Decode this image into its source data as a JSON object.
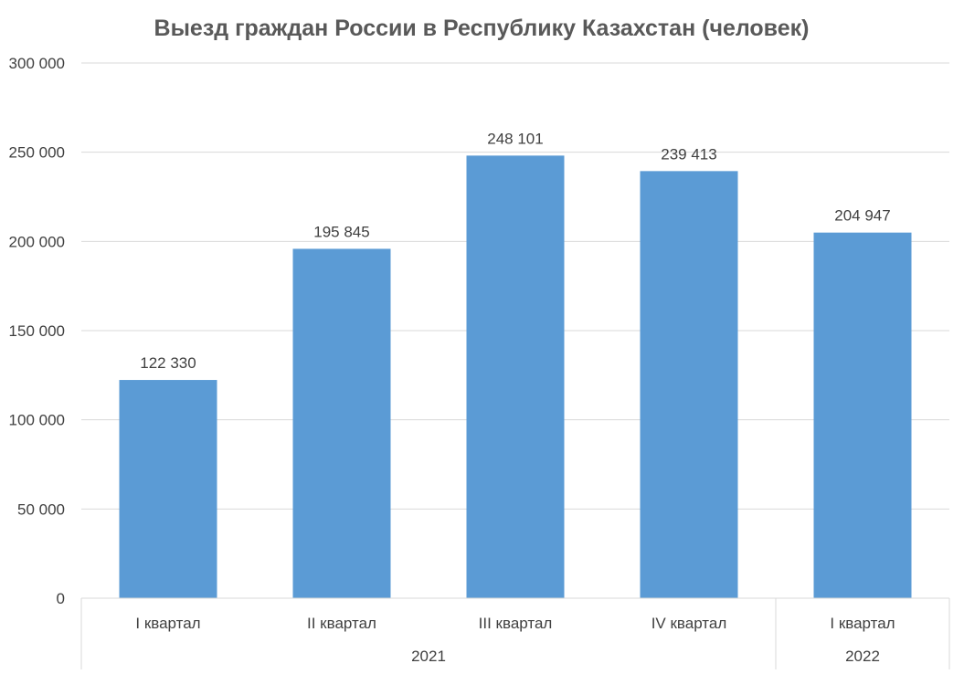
{
  "chart_data": {
    "type": "bar",
    "title": "Выезд граждан России в Республику Казахстан (человек)",
    "categories": [
      "I квартал",
      "II квартал",
      "III квартал",
      "IV квартал",
      "I квартал"
    ],
    "groups": [
      {
        "label": "2021",
        "count": 4
      },
      {
        "label": "2022",
        "count": 1
      }
    ],
    "values": [
      122330,
      195845,
      248101,
      239413,
      204947
    ],
    "data_labels": [
      "122 330",
      "195 845",
      "248 101",
      "239 413",
      "204 947"
    ],
    "ylim": [
      0,
      300000
    ],
    "y_ticks": [
      0,
      50000,
      100000,
      150000,
      200000,
      250000,
      300000
    ],
    "y_tick_labels": [
      "0",
      "50 000",
      "100 000",
      "150 000",
      "200 000",
      "250 000",
      "300 000"
    ],
    "xlabel": "",
    "ylabel": "",
    "grid": true,
    "legend": "none",
    "bar_color": "#5b9bd5"
  }
}
